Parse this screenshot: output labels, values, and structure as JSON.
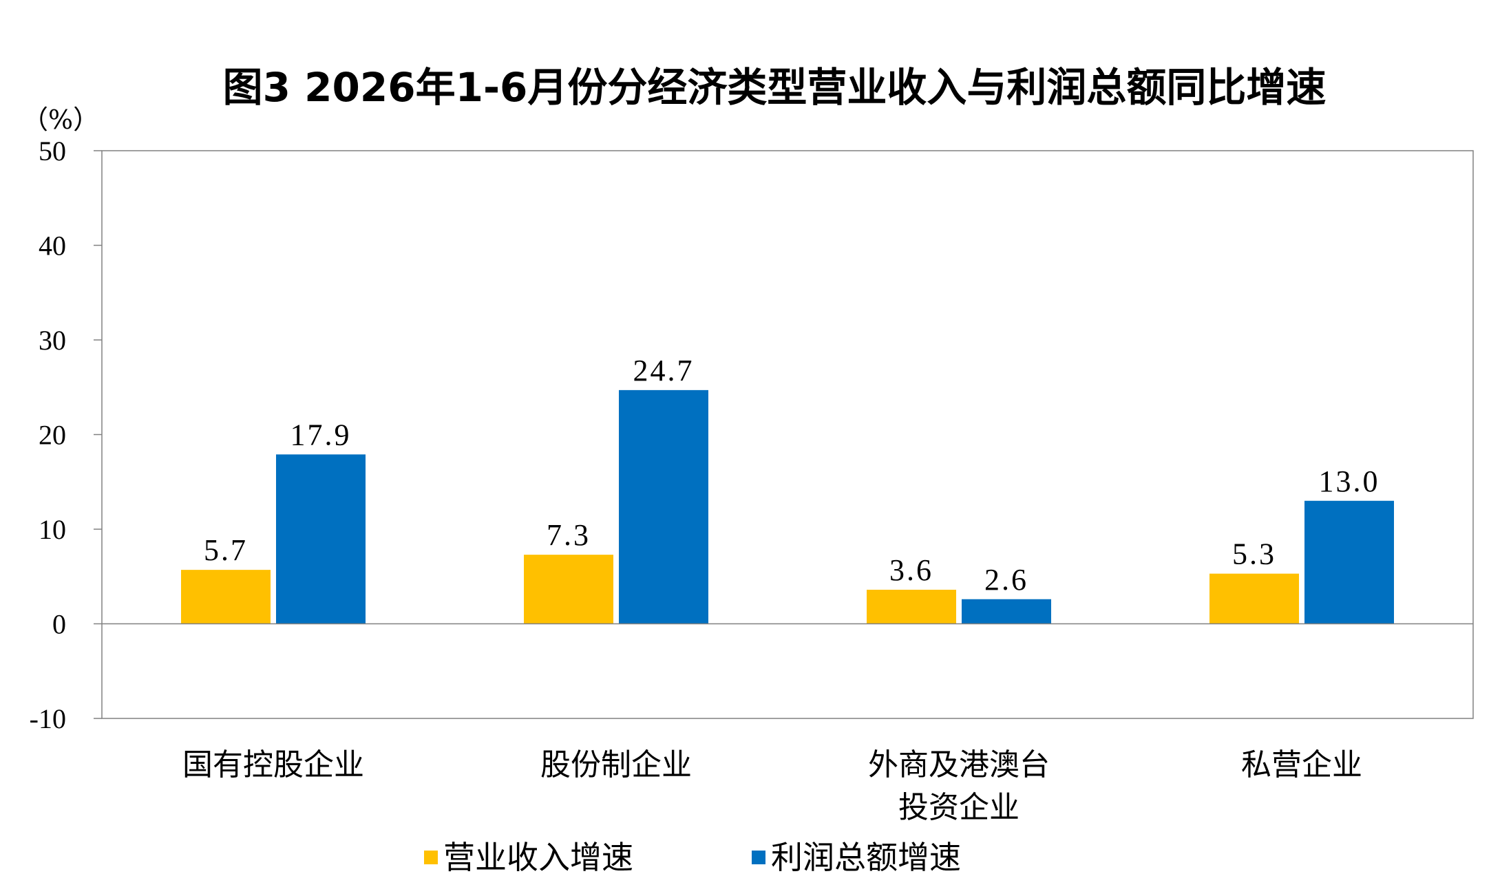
{
  "chart_data": {
    "type": "bar",
    "title": "图3 2026年1-6月份分经济类型营业收入与利润总额同比增速",
    "unit_label": "（%）",
    "ylim": [
      -10,
      50
    ],
    "yticks": [
      -10,
      0,
      10,
      20,
      30,
      40,
      50
    ],
    "categories": [
      [
        "国有控股企业"
      ],
      [
        "股份制企业"
      ],
      [
        "外商及港澳台",
        "投资企业"
      ],
      [
        "私营企业"
      ]
    ],
    "series": [
      {
        "name": "营业收入增速",
        "color": "#FFC000",
        "values": [
          5.7,
          7.3,
          3.6,
          5.3
        ]
      },
      {
        "name": "利润总额增速",
        "color": "#0070C0",
        "values": [
          17.9,
          24.7,
          2.6,
          13.0
        ]
      }
    ],
    "data_label_format": "one-decimal",
    "legend_position": "bottom",
    "grid": false
  }
}
